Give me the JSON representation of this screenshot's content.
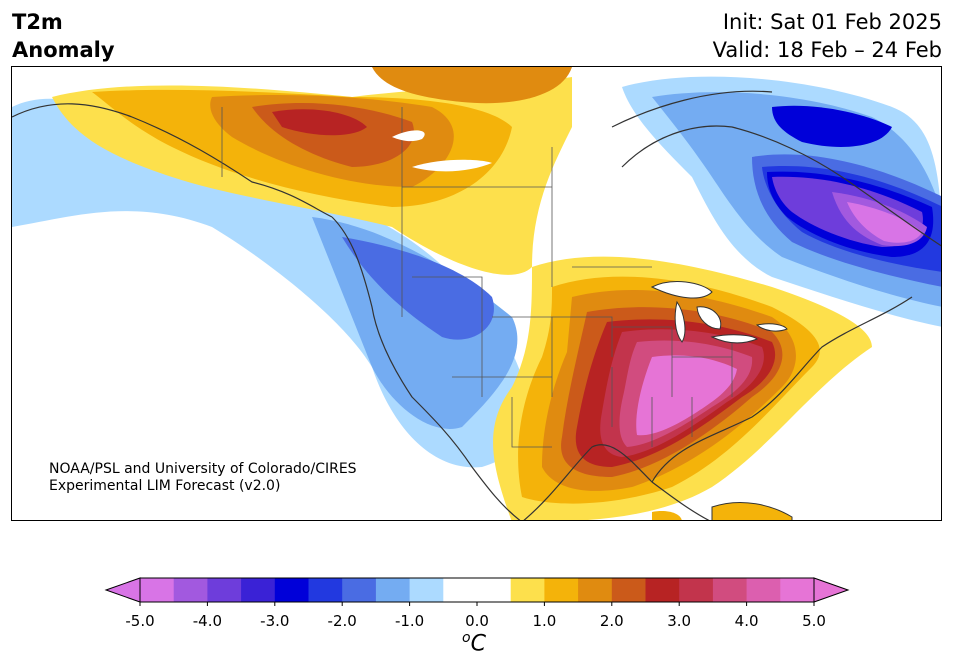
{
  "header": {
    "title_line1": "T2m",
    "title_line2": "Anomaly",
    "init": "Init: Sat 01 Feb 2025",
    "valid": "Valid: 18 Feb – 24 Feb"
  },
  "credit": {
    "line1": "NOAA/PSL and University of Colorado/CIRES",
    "line2": "Experimental LIM Forecast (v2.0)"
  },
  "colorbar": {
    "unit_prefix": "o",
    "unit": "C",
    "ticks": [
      "-5.0",
      "-4.0",
      "-3.0",
      "-2.0",
      "-1.0",
      "0.0",
      "1.0",
      "2.0",
      "3.0",
      "4.0",
      "5.0"
    ],
    "bins": [
      {
        "from": -5.0,
        "color": "#d874e6"
      },
      {
        "from": -4.5,
        "color": "#a259df"
      },
      {
        "from": -4.0,
        "color": "#6e3ddb"
      },
      {
        "from": -3.5,
        "color": "#3a22d6"
      },
      {
        "from": -3.0,
        "color": "#0000d9"
      },
      {
        "from": -2.5,
        "color": "#2239e0"
      },
      {
        "from": -2.0,
        "color": "#4a6ce3"
      },
      {
        "from": -1.5,
        "color": "#74acf2"
      },
      {
        "from": -1.0,
        "color": "#acdaff"
      },
      {
        "from": -0.5,
        "color": "#ffffff"
      },
      {
        "from": 0.0,
        "color": "#ffffff"
      },
      {
        "from": 0.5,
        "color": "#fde04c"
      },
      {
        "from": 1.0,
        "color": "#f4b30a"
      },
      {
        "from": 1.5,
        "color": "#e08b10"
      },
      {
        "from": 2.0,
        "color": "#cb5a1a"
      },
      {
        "from": 2.5,
        "color": "#b72323"
      },
      {
        "from": 3.0,
        "color": "#c2344c"
      },
      {
        "from": 3.5,
        "color": "#d14c7f"
      },
      {
        "from": 4.0,
        "color": "#dc5faf"
      },
      {
        "from": 4.5,
        "color": "#e674d6"
      }
    ],
    "under_color": "#d874e6",
    "over_color": "#e674d6"
  },
  "map": {
    "region": "North America",
    "variable": "2 m temperature anomaly"
  }
}
